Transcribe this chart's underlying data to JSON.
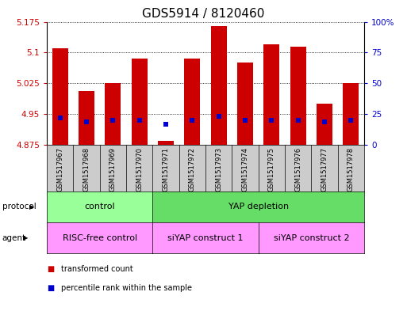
{
  "title": "GDS5914 / 8120460",
  "samples": [
    "GSM1517967",
    "GSM1517968",
    "GSM1517969",
    "GSM1517970",
    "GSM1517971",
    "GSM1517972",
    "GSM1517973",
    "GSM1517974",
    "GSM1517975",
    "GSM1517976",
    "GSM1517977",
    "GSM1517978"
  ],
  "bar_values": [
    5.11,
    5.005,
    5.025,
    5.085,
    4.885,
    5.085,
    5.165,
    5.075,
    5.12,
    5.115,
    4.975,
    5.025
  ],
  "blue_values": [
    4.94,
    4.93,
    4.935,
    4.935,
    4.925,
    4.935,
    4.945,
    4.935,
    4.935,
    4.935,
    4.93,
    4.935
  ],
  "bar_base": 4.875,
  "ymin": 4.875,
  "ymax": 5.175,
  "yticks": [
    4.875,
    4.95,
    5.025,
    5.1,
    5.175
  ],
  "ytick_labels": [
    "4.875",
    "4.95",
    "5.025",
    "5.1",
    "5.175"
  ],
  "right_yticks": [
    0,
    25,
    50,
    75,
    100
  ],
  "right_ytick_labels": [
    "0",
    "25",
    "50",
    "75",
    "100%"
  ],
  "bar_color": "#cc0000",
  "blue_color": "#0000cc",
  "bar_width": 0.6,
  "protocol_groups": [
    {
      "label": "control",
      "start": 0,
      "end": 3,
      "color": "#99ff99"
    },
    {
      "label": "YAP depletion",
      "start": 4,
      "end": 11,
      "color": "#66dd66"
    }
  ],
  "agent_groups": [
    {
      "label": "RISC-free control",
      "start": 0,
      "end": 3,
      "color": "#ff99ff"
    },
    {
      "label": "siYAP construct 1",
      "start": 4,
      "end": 7,
      "color": "#ff99ff"
    },
    {
      "label": "siYAP construct 2",
      "start": 8,
      "end": 11,
      "color": "#ff99ff"
    }
  ],
  "protocol_label": "protocol",
  "agent_label": "agent",
  "legend_items": [
    {
      "label": "transformed count",
      "color": "#cc0000"
    },
    {
      "label": "percentile rank within the sample",
      "color": "#0000cc"
    }
  ],
  "sample_bg": "#cccccc",
  "title_fontsize": 11,
  "tick_fontsize": 7.5,
  "sample_fontsize": 6.0
}
